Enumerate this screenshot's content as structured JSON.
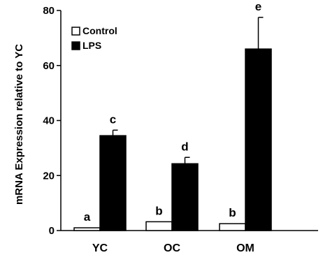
{
  "chart_data": {
    "type": "bar",
    "title": "",
    "xlabel": "",
    "ylabel": "mRNA Expression relative to YC",
    "ylim": [
      0,
      80
    ],
    "yticks": [
      0,
      20,
      40,
      60,
      80
    ],
    "categories": [
      "YC",
      "OC",
      "OM"
    ],
    "series": [
      {
        "name": "Control",
        "color": "#ffffff",
        "values": [
          1,
          3.2,
          2.5
        ],
        "errors": [
          0,
          0,
          0
        ],
        "labels": [
          "a",
          "b",
          "b"
        ]
      },
      {
        "name": "LPS",
        "color": "#000000",
        "values": [
          34.5,
          24.3,
          66
        ],
        "errors": [
          2,
          2.3,
          11.5
        ],
        "labels": [
          "c",
          "d",
          "e"
        ]
      }
    ],
    "legend": {
      "position": "top-left"
    },
    "grid": false
  }
}
